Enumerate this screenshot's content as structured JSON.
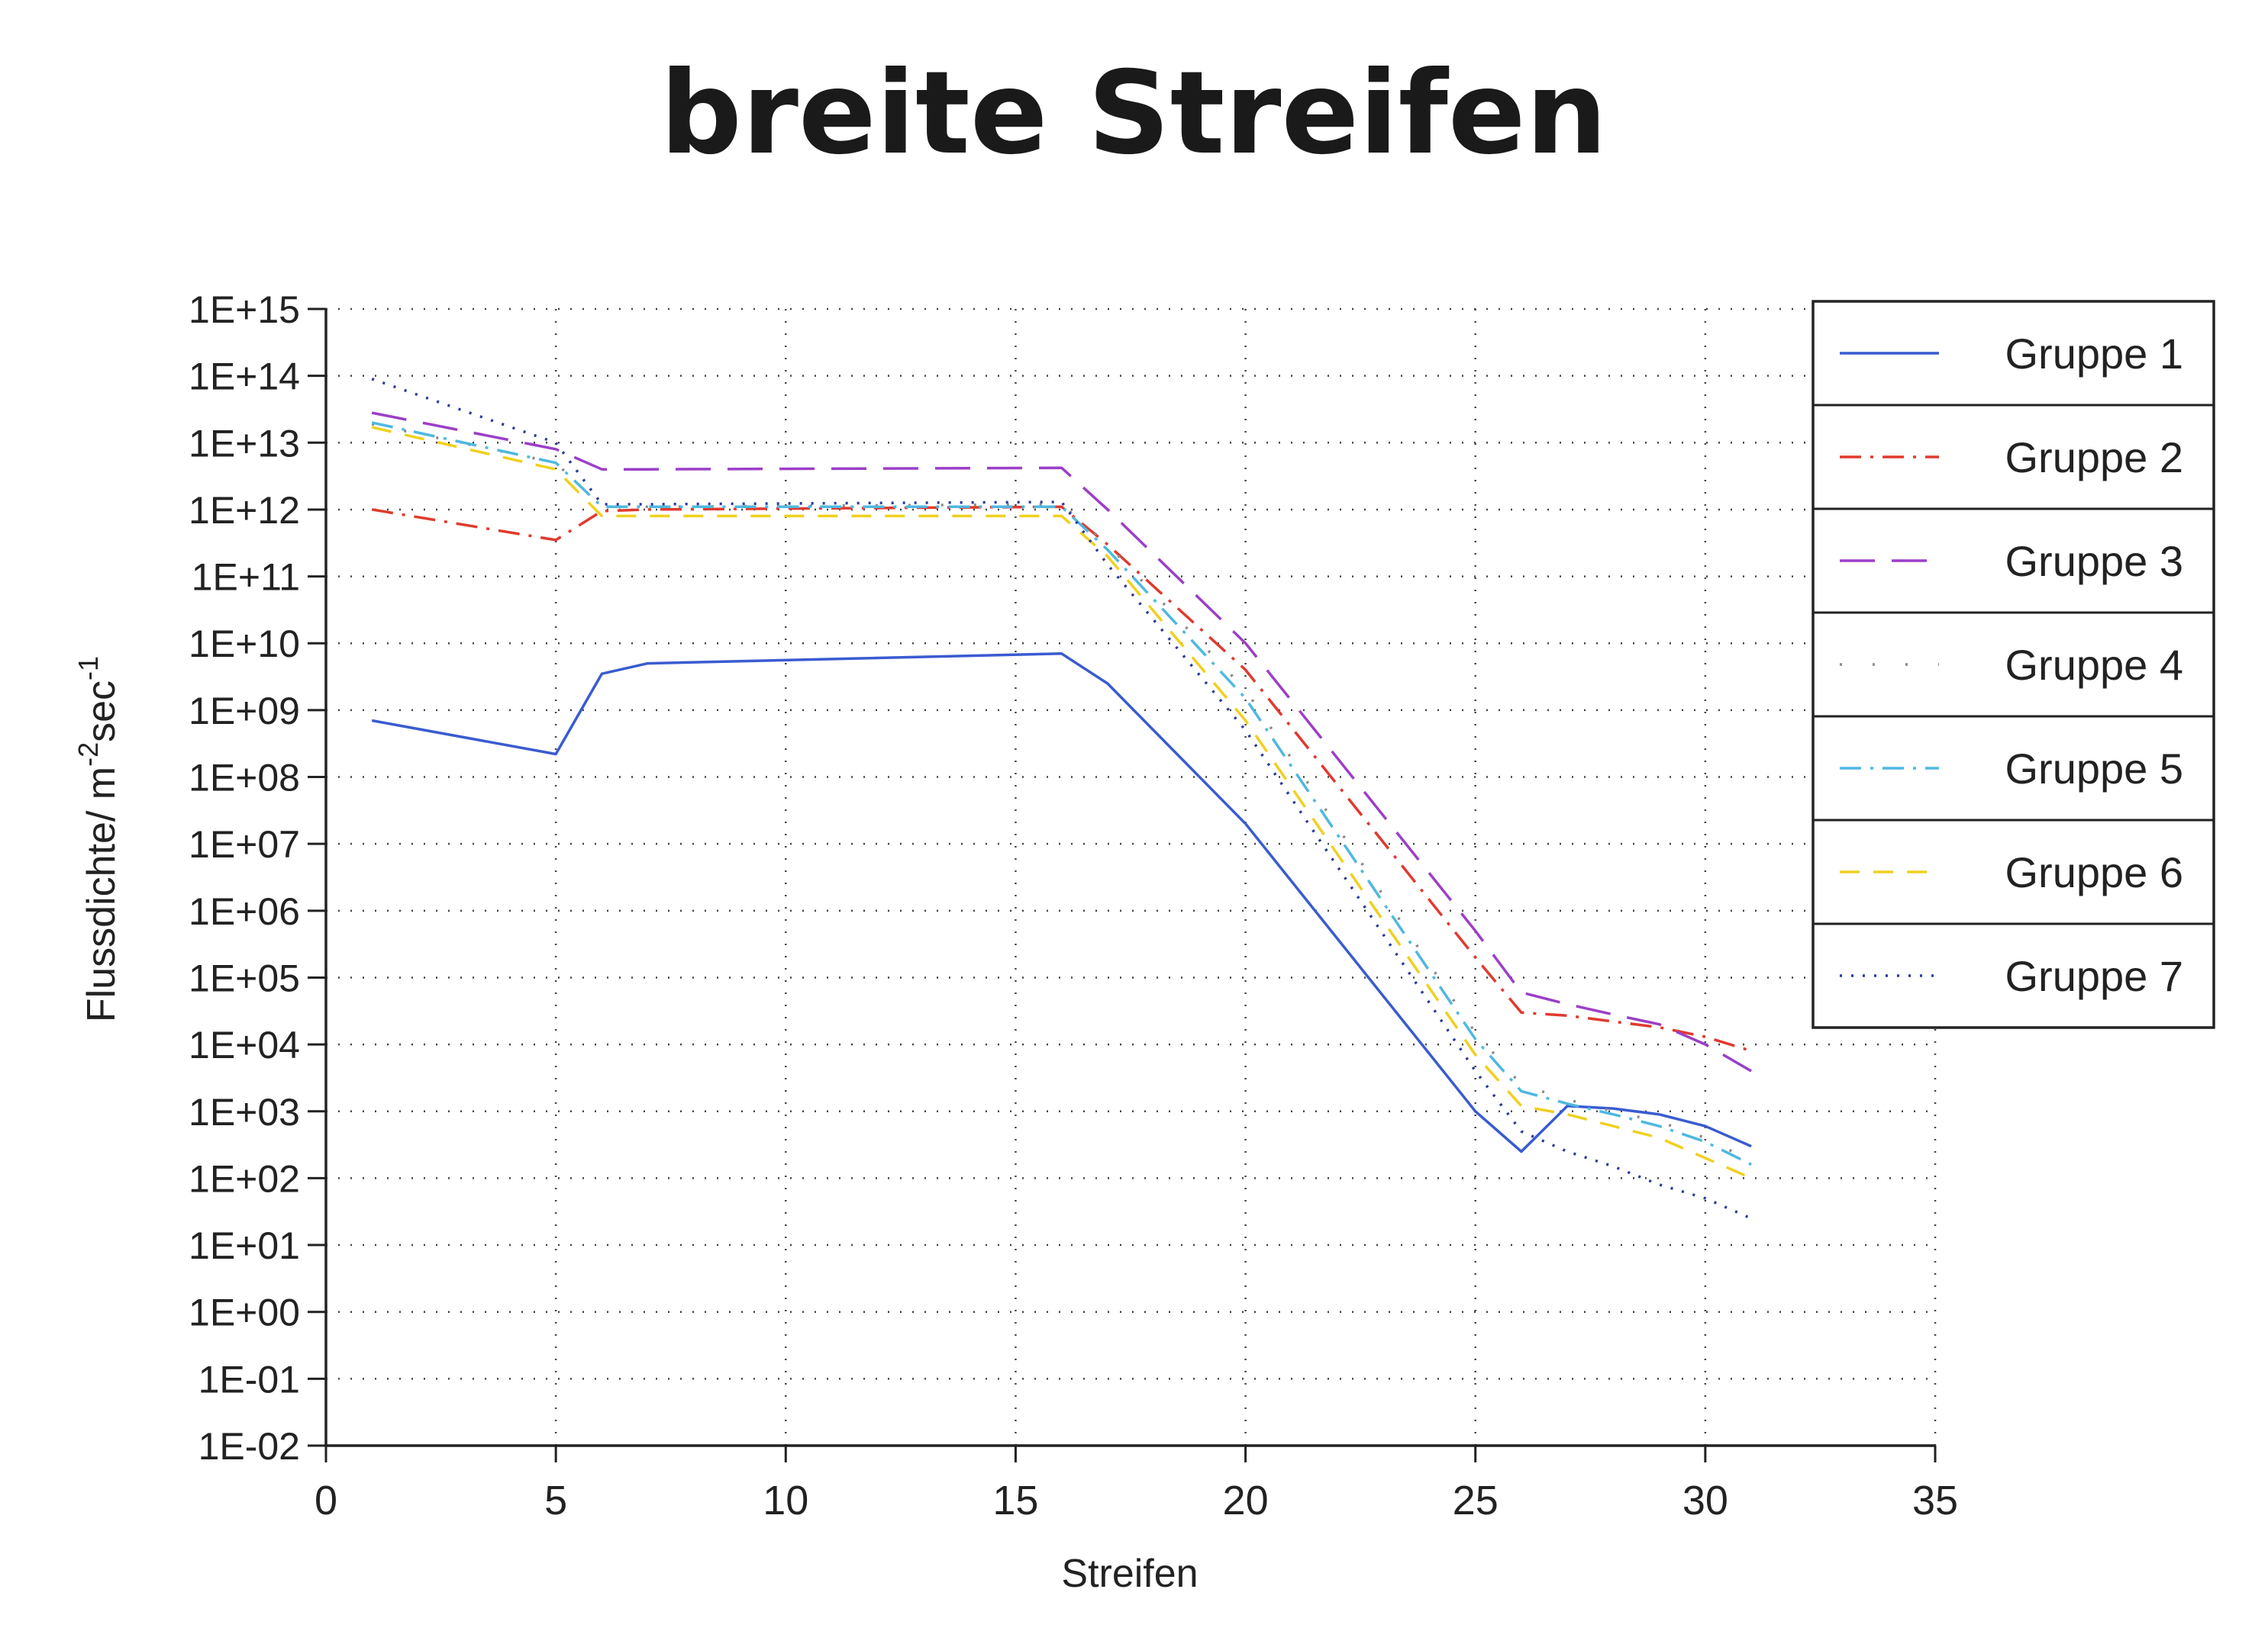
{
  "chart_data": {
    "type": "line",
    "title": "breite Streifen",
    "xlabel": "Streifen",
    "ylabel_main": "Flussdichte/ m",
    "ylabel_sup1": "-2",
    "ylabel_mid": "sec",
    "ylabel_sup2": "-1",
    "xlim": [
      0,
      35
    ],
    "ylim_log10": [
      -2,
      15
    ],
    "y_scale": "log",
    "grid": true,
    "legend_placement": "top-right",
    "x_ticks": [
      "0",
      "5",
      "10",
      "15",
      "20",
      "25",
      "30",
      "35"
    ],
    "y_ticks": [
      "1E+15",
      "1E+14",
      "1E+13",
      "1E+12",
      "1E+11",
      "1E+10",
      "1E+09",
      "1E+08",
      "1E+07",
      "1E+06",
      "1E+05",
      "1E+04",
      "1E+03",
      "1E+02",
      "1E+01",
      "1E+00",
      "1E-01",
      "1E-02"
    ],
    "x": [
      1,
      5,
      6,
      7,
      16,
      17,
      20,
      25,
      26,
      27,
      28,
      29,
      30,
      31
    ],
    "series": [
      {
        "name": "Gruppe 1",
        "color": "#3a5bd0",
        "dash": "solid",
        "values": [
          700000000.0,
          220000000.0,
          3500000000.0,
          5000000000.0,
          7000000000.0,
          2500000000.0,
          20000000.0,
          1000.0,
          250.0,
          1200.0,
          1100.0,
          900.0,
          600.0,
          300.0
        ]
      },
      {
        "name": "Gruppe 2",
        "color": "#e03a2e",
        "dash": "dashdot",
        "values": [
          1000000000000.0,
          350000000000.0,
          950000000000.0,
          1000000000000.0,
          1100000000000.0,
          300000000000.0,
          4000000000.0,
          200000.0,
          30000.0,
          27000.0,
          22000.0,
          18000.0,
          13000.0,
          8000.0
        ]
      },
      {
        "name": "Gruppe 3",
        "color": "#9b3fc8",
        "dash": "longdash",
        "values": [
          28000000000000.0,
          8000000000000.0,
          4000000000000.0,
          4000000000000.0,
          4200000000000.0,
          1000000000000.0,
          10000000000.0,
          500000.0,
          60000.0,
          40000.0,
          28000.0,
          20000.0,
          10000.0,
          4000.0
        ]
      },
      {
        "name": "Gruppe 4",
        "color": "#8a8a8a",
        "dash": "sparse",
        "values": [
          19000000000000.0,
          5000000000000.0,
          1100000000000.0,
          1100000000000.0,
          1200000000000.0,
          300000000000.0,
          2000000000.0,
          15000.0,
          2500.0,
          1500.0,
          1000.0,
          700.0,
          400.0,
          180.0
        ]
      },
      {
        "name": "Gruppe 5",
        "color": "#4fb8e0",
        "dash": "dashdot",
        "values": [
          20000000000000.0,
          5000000000000.0,
          1100000000000.0,
          1100000000000.0,
          1100000000000.0,
          250000000000.0,
          1500000000.0,
          12000.0,
          2000.0,
          1300.0,
          900.0,
          600.0,
          350.0,
          160.0
        ]
      },
      {
        "name": "Gruppe 6",
        "color": "#f0d020",
        "dash": "dashed",
        "values": [
          17000000000000.0,
          4000000000000.0,
          800000000000.0,
          800000000000.0,
          800000000000.0,
          200000000000.0,
          700000000.0,
          7000.0,
          1200.0,
          900.0,
          600.0,
          400.0,
          200.0,
          100.0
        ]
      },
      {
        "name": "Gruppe 7",
        "color": "#2c3a9a",
        "dash": "dotted",
        "values": [
          90000000000000.0,
          10000000000000.0,
          1200000000000.0,
          1200000000000.0,
          1300000000000.0,
          150000000000.0,
          500000000.0,
          4000.0,
          500.0,
          250.0,
          150.0,
          80.0,
          50.0,
          25.0
        ]
      }
    ]
  }
}
